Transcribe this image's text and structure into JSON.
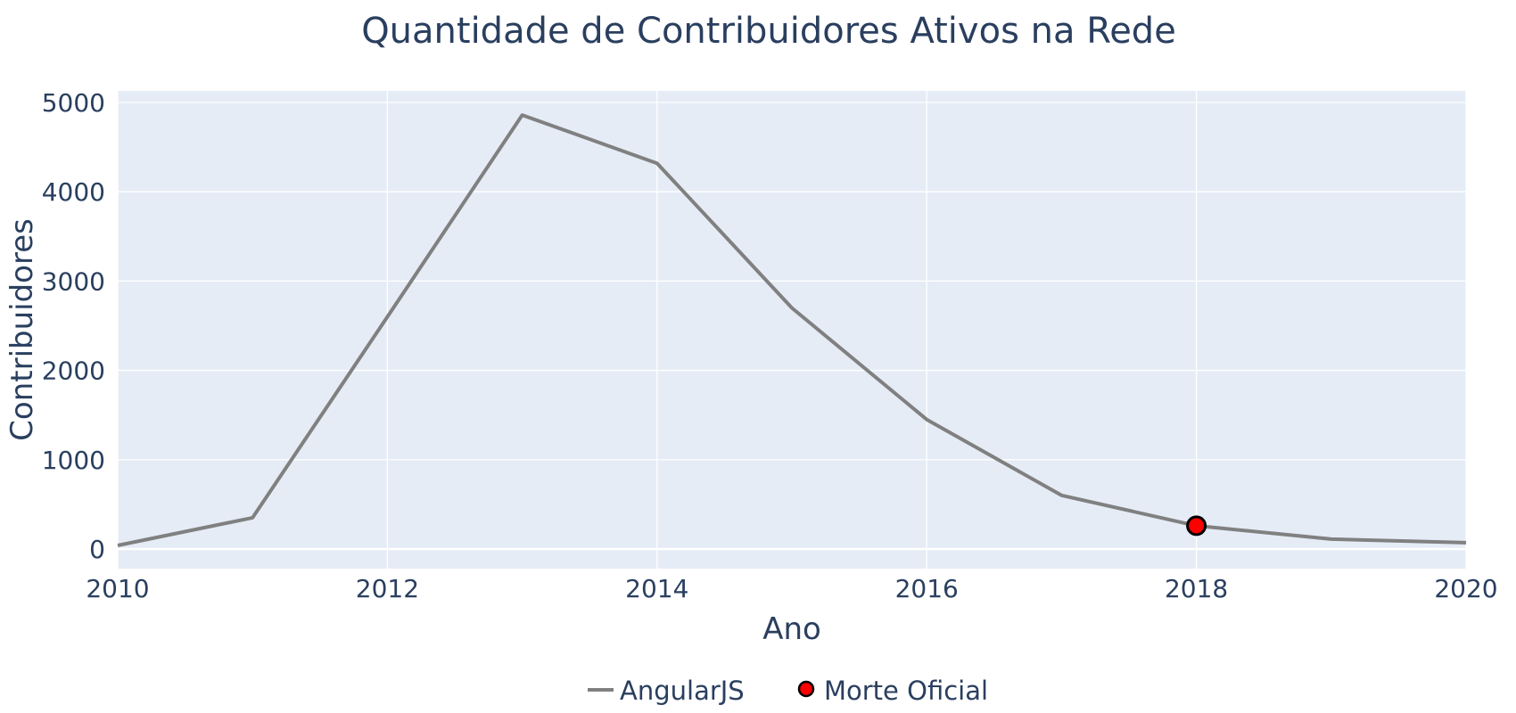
{
  "chart_data": {
    "type": "line",
    "title": "Quantidade de Contribuidores Ativos na Rede",
    "xlabel": "Ano",
    "ylabel": "Contribuidores",
    "xlim": [
      2010,
      2020
    ],
    "ylim": [
      -220,
      5130
    ],
    "x_ticks": [
      "2010",
      "2012",
      "2014",
      "2016",
      "2018",
      "2020"
    ],
    "y_ticks": [
      "0",
      "1000",
      "2000",
      "3000",
      "4000",
      "5000"
    ],
    "grid": true,
    "legend_placement": "bottom-center",
    "series": [
      {
        "name": "AngularJS",
        "mode": "lines",
        "color": "#808080",
        "x": [
          2010,
          2011,
          2012,
          2013,
          2014,
          2015,
          2016,
          2017,
          2018,
          2019,
          2020
        ],
        "y": [
          40,
          350,
          2600,
          4860,
          4320,
          2700,
          1450,
          600,
          260,
          110,
          70
        ]
      },
      {
        "name": "Morte Oficial",
        "mode": "markers",
        "color": "#ff0000",
        "x": [
          2018
        ],
        "y": [
          260
        ]
      }
    ]
  },
  "colors": {
    "plot_background": "#e5ecf6",
    "grid": "#ffffff",
    "text": "#2a3f5f"
  }
}
